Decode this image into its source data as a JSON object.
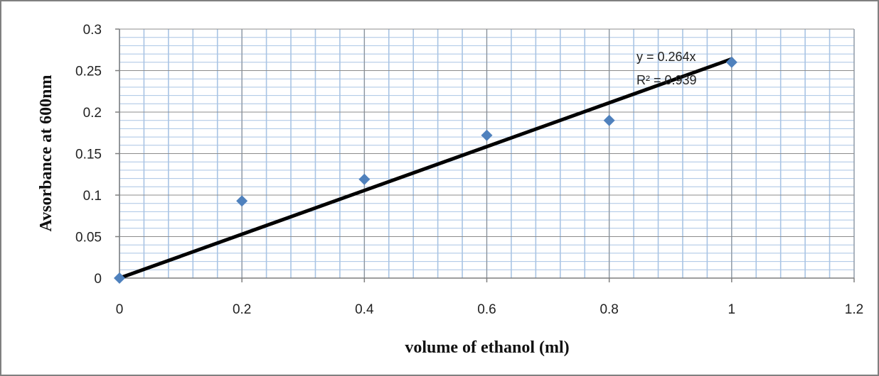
{
  "chart_data": {
    "type": "scatter",
    "xlabel": "volume of ethanol (ml)",
    "ylabel": "Avsorbance at 600nm",
    "xlim": [
      0,
      1.2
    ],
    "ylim": [
      0,
      0.3
    ],
    "x_ticks": [
      "0",
      "0.2",
      "0.4",
      "0.6",
      "0.8",
      "1",
      "1.2"
    ],
    "y_ticks": [
      "0",
      "0.05",
      "0.1",
      "0.15",
      "0.2",
      "0.25",
      "0.3"
    ],
    "grid": true,
    "series": [
      {
        "points": [
          {
            "x": 0,
            "y": 0
          },
          {
            "x": 0.2,
            "y": 0.093
          },
          {
            "x": 0.4,
            "y": 0.119
          },
          {
            "x": 0.6,
            "y": 0.172
          },
          {
            "x": 0.8,
            "y": 0.19
          },
          {
            "x": 1.0,
            "y": 0.26
          }
        ],
        "color": "#4f81bd",
        "marker": "diamond"
      }
    ],
    "trendline": {
      "x_range": [
        0,
        1.0
      ],
      "slope": 0.264,
      "color": "#000000",
      "equation_label": "y = 0.264x",
      "r2_label": "R² = 0.939"
    }
  }
}
